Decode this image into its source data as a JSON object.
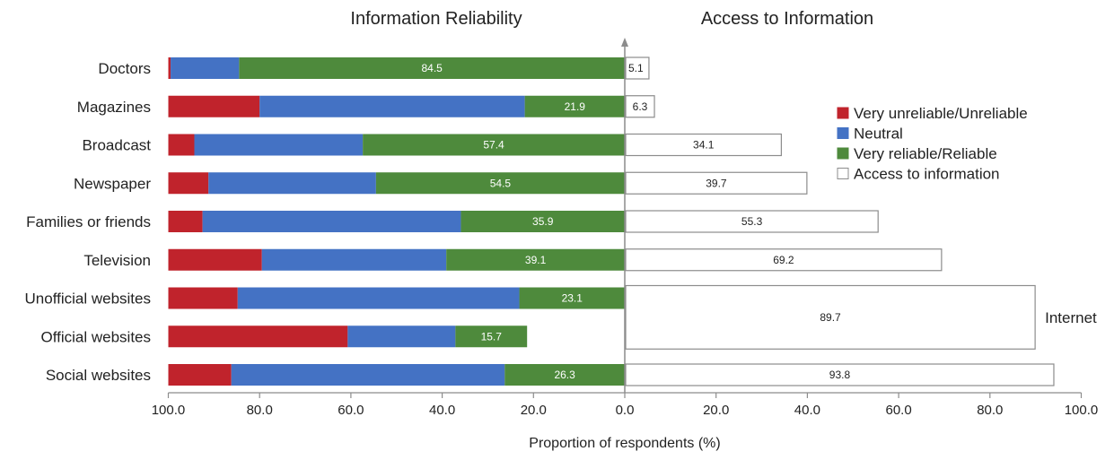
{
  "chart_data": {
    "type": "bar",
    "orientation": "horizontal",
    "layout": "diverging",
    "title_left": "Information Reliability",
    "title_right": "Access to Information",
    "xlabel": "Proportion of respondents (%)",
    "ylabel": "",
    "xlim_left": [
      100,
      0
    ],
    "xlim_right": [
      0,
      100
    ],
    "ticks_left": [
      "100.0",
      "80.0",
      "60.0",
      "40.0",
      "20.0",
      "0.0"
    ],
    "ticks_right": [
      "20.0",
      "40.0",
      "60.0",
      "80.0",
      "100.0"
    ],
    "categories": [
      "Doctors",
      "Magazines",
      "Broadcast",
      "Newspaper",
      "Families or friends",
      "Television",
      "Unofficial websites",
      "Official websites",
      "Social websites"
    ],
    "series": [
      {
        "name": "Very unreliable/Unreliable",
        "color": "#c0232c",
        "side": "left",
        "values": [
          0.5,
          20.0,
          5.7,
          8.8,
          7.5,
          20.5,
          15.2,
          39.3,
          13.8
        ]
      },
      {
        "name": "Neutral",
        "color": "#4472c4",
        "side": "left",
        "values": [
          15.0,
          58.1,
          36.9,
          36.7,
          56.6,
          40.4,
          61.7,
          23.6,
          59.9
        ]
      },
      {
        "name": "Very reliable/Reliable",
        "color": "#4e8a3c",
        "side": "left",
        "values": [
          84.5,
          21.9,
          57.4,
          54.5,
          35.9,
          39.1,
          23.1,
          15.7,
          26.3
        ],
        "labels": [
          "84.5",
          "21.9",
          "57.4",
          "54.5",
          "35.9",
          "39.1",
          "23.1",
          "15.7",
          "26.3"
        ]
      },
      {
        "name": "Access to information",
        "color": "#ffffff",
        "side": "right",
        "values": [
          5.1,
          6.3,
          34.1,
          39.7,
          55.3,
          69.2,
          89.7,
          89.7,
          93.8
        ],
        "labels": [
          "5.1",
          "6.3",
          "34.1",
          "39.7",
          "55.3",
          "69.2",
          "",
          "",
          "93.8"
        ]
      }
    ],
    "merged_access": {
      "label": "89.7",
      "note": "Internet",
      "categories": [
        "Unofficial websites",
        "Official websites"
      ]
    },
    "legend": {
      "position": "right",
      "entries": [
        "Very unreliable/Unreliable",
        "Neutral",
        "Very reliable/Reliable",
        "Access to information"
      ]
    },
    "grid": false
  }
}
